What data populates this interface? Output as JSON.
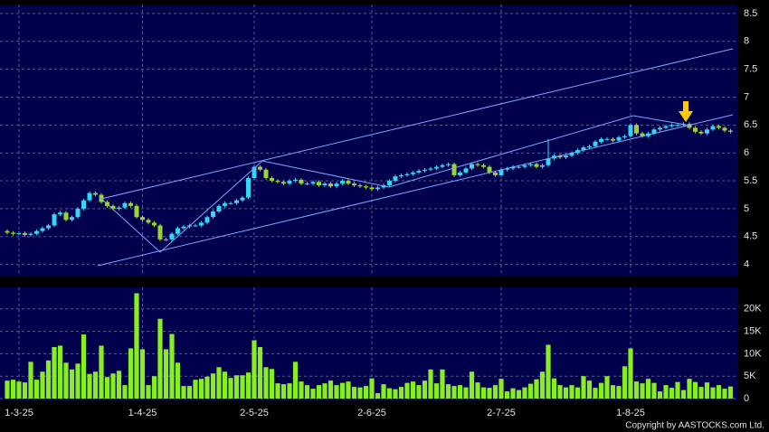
{
  "chart_data": [
    {
      "type": "candlestick",
      "categories": [
        null,
        null,
        "1-3-25",
        null,
        null,
        null,
        null,
        null,
        null,
        null,
        null,
        null,
        null,
        null,
        null,
        null,
        null,
        null,
        null,
        null,
        null,
        null,
        null,
        "1-4-25",
        null,
        null,
        null,
        null,
        null,
        null,
        null,
        null,
        null,
        null,
        null,
        null,
        null,
        null,
        null,
        null,
        null,
        null,
        "2-5-25",
        null,
        null,
        null,
        null,
        null,
        null,
        null,
        null,
        null,
        null,
        null,
        null,
        null,
        null,
        null,
        null,
        null,
        null,
        null,
        "2-6-25",
        null,
        null,
        null,
        null,
        null,
        null,
        null,
        null,
        null,
        null,
        null,
        null,
        null,
        null,
        null,
        null,
        null,
        null,
        null,
        null,
        null,
        "2-7-25",
        null,
        null,
        null,
        null,
        null,
        null,
        null,
        null,
        null,
        null,
        null,
        null,
        null,
        null,
        null,
        null,
        null,
        null,
        null,
        null,
        null,
        "1-8-25",
        null,
        null,
        null,
        null,
        null,
        null,
        null,
        null,
        null,
        null,
        null,
        null,
        null,
        null,
        null,
        null,
        null
      ],
      "open": [
        4.6,
        4.57,
        4.55,
        4.56,
        4.53,
        4.55,
        4.6,
        4.65,
        4.7,
        4.9,
        4.93,
        4.8,
        4.85,
        5.0,
        5.15,
        5.28,
        5.25,
        5.12,
        5.05,
        5.0,
        5.02,
        5.1,
        5.05,
        4.85,
        4.8,
        4.75,
        4.7,
        4.45,
        4.45,
        4.55,
        4.65,
        4.68,
        4.7,
        4.7,
        4.75,
        4.85,
        4.95,
        5.05,
        5.1,
        5.1,
        5.15,
        5.2,
        5.55,
        5.75,
        5.7,
        5.55,
        5.5,
        5.48,
        5.45,
        5.5,
        5.52,
        5.45,
        5.45,
        5.48,
        5.42,
        5.45,
        5.4,
        5.45,
        5.5,
        5.45,
        5.42,
        5.4,
        5.38,
        5.35,
        5.38,
        5.42,
        5.5,
        5.58,
        5.6,
        5.62,
        5.65,
        5.68,
        5.7,
        5.72,
        5.75,
        5.78,
        5.8,
        5.6,
        5.65,
        5.72,
        5.8,
        5.78,
        5.75,
        5.65,
        5.6,
        5.7,
        5.72,
        5.75,
        5.75,
        5.78,
        5.8,
        5.75,
        5.78,
        5.9,
        5.95,
        5.92,
        5.95,
        6.0,
        6.05,
        6.1,
        6.12,
        6.2,
        6.25,
        6.25,
        6.22,
        6.28,
        6.3,
        6.5,
        6.35,
        6.3,
        6.35,
        6.42,
        6.45,
        6.48,
        6.5,
        6.5,
        6.52,
        6.45,
        6.38,
        6.35,
        6.42,
        6.48,
        6.45,
        6.4
      ],
      "high": [
        4.63,
        4.6,
        4.59,
        4.59,
        4.58,
        4.63,
        4.68,
        4.73,
        4.93,
        4.96,
        4.96,
        4.88,
        5.03,
        5.18,
        5.31,
        5.31,
        5.28,
        5.15,
        5.08,
        5.05,
        5.13,
        5.13,
        5.08,
        4.88,
        4.83,
        4.78,
        4.73,
        4.48,
        4.58,
        4.68,
        4.71,
        4.73,
        4.73,
        4.78,
        4.88,
        4.98,
        5.08,
        5.13,
        5.13,
        5.18,
        5.23,
        5.58,
        5.78,
        5.78,
        5.73,
        5.58,
        5.53,
        5.51,
        5.53,
        5.55,
        5.55,
        5.48,
        5.51,
        5.51,
        5.48,
        5.48,
        5.48,
        5.53,
        5.53,
        5.48,
        5.45,
        5.43,
        5.41,
        5.41,
        5.45,
        5.53,
        5.61,
        5.63,
        5.65,
        5.68,
        5.71,
        5.73,
        5.75,
        5.78,
        5.81,
        5.83,
        5.83,
        5.68,
        5.75,
        5.83,
        5.83,
        5.81,
        5.78,
        5.68,
        5.73,
        5.75,
        5.78,
        5.78,
        5.81,
        5.83,
        5.83,
        5.81,
        6.25,
        5.98,
        5.98,
        5.98,
        6.03,
        6.08,
        6.13,
        6.15,
        6.23,
        6.28,
        6.28,
        6.28,
        6.31,
        6.33,
        6.53,
        6.53,
        6.38,
        6.38,
        6.45,
        6.48,
        6.51,
        6.53,
        6.53,
        6.55,
        6.55,
        6.48,
        6.41,
        6.45,
        6.51,
        6.51,
        6.48,
        6.43
      ],
      "low": [
        4.54,
        4.52,
        4.52,
        4.5,
        4.5,
        4.52,
        4.57,
        4.62,
        4.67,
        4.87,
        4.77,
        4.77,
        4.82,
        4.97,
        5.12,
        5.22,
        5.09,
        5.02,
        4.97,
        4.97,
        4.99,
        5.02,
        4.82,
        4.77,
        4.72,
        4.67,
        4.42,
        4.42,
        4.42,
        4.52,
        4.62,
        4.65,
        4.67,
        4.67,
        4.72,
        4.82,
        4.92,
        5.02,
        5.07,
        5.07,
        5.12,
        5.17,
        5.52,
        5.67,
        5.52,
        5.47,
        5.45,
        5.42,
        5.42,
        5.47,
        5.42,
        5.42,
        5.42,
        5.39,
        5.39,
        5.37,
        5.37,
        5.42,
        5.42,
        5.39,
        5.37,
        5.35,
        5.32,
        5.32,
        5.35,
        5.39,
        5.47,
        5.55,
        5.57,
        5.59,
        5.62,
        5.65,
        5.67,
        5.69,
        5.72,
        5.75,
        5.57,
        5.57,
        5.62,
        5.69,
        5.75,
        5.72,
        5.62,
        5.57,
        5.57,
        5.67,
        5.69,
        5.72,
        5.72,
        5.75,
        5.72,
        5.72,
        5.75,
        5.87,
        5.89,
        5.89,
        5.92,
        5.97,
        6.02,
        6.07,
        6.09,
        6.17,
        6.22,
        6.19,
        6.19,
        6.25,
        6.27,
        6.32,
        6.27,
        6.27,
        6.32,
        6.39,
        6.42,
        6.45,
        6.47,
        6.47,
        6.42,
        6.35,
        6.32,
        6.32,
        6.39,
        6.42,
        6.37,
        6.35
      ],
      "close": [
        4.57,
        4.55,
        4.56,
        4.53,
        4.55,
        4.6,
        4.65,
        4.7,
        4.9,
        4.93,
        4.8,
        4.85,
        5.0,
        5.15,
        5.28,
        5.25,
        5.12,
        5.05,
        5.0,
        5.02,
        5.1,
        5.05,
        4.85,
        4.8,
        4.75,
        4.7,
        4.45,
        4.45,
        4.55,
        4.65,
        4.68,
        4.7,
        4.7,
        4.75,
        4.85,
        4.95,
        5.05,
        5.1,
        5.1,
        5.15,
        5.2,
        5.55,
        5.75,
        5.7,
        5.55,
        5.5,
        5.48,
        5.45,
        5.5,
        5.52,
        5.45,
        5.45,
        5.48,
        5.42,
        5.45,
        5.4,
        5.45,
        5.5,
        5.45,
        5.42,
        5.4,
        5.38,
        5.35,
        5.38,
        5.42,
        5.5,
        5.58,
        5.6,
        5.62,
        5.65,
        5.68,
        5.7,
        5.72,
        5.75,
        5.78,
        5.8,
        5.6,
        5.65,
        5.72,
        5.8,
        5.78,
        5.75,
        5.65,
        5.6,
        5.7,
        5.72,
        5.75,
        5.75,
        5.78,
        5.8,
        5.75,
        5.78,
        5.9,
        5.95,
        5.92,
        5.95,
        6.0,
        6.05,
        6.1,
        6.12,
        6.2,
        6.25,
        6.25,
        6.22,
        6.28,
        6.3,
        6.5,
        6.35,
        6.3,
        6.35,
        6.42,
        6.45,
        6.48,
        6.5,
        6.5,
        6.52,
        6.45,
        6.38,
        6.35,
        6.42,
        6.48,
        6.45,
        6.4,
        6.38
      ],
      "up_color": "#33d6f5",
      "down_color": "#99d633",
      "ylim": [
        3.8,
        8.66
      ],
      "yticks": [
        4,
        4.5,
        5,
        5.5,
        6,
        6.5,
        7,
        7.5,
        8,
        8.5
      ],
      "grid": true
    },
    {
      "type": "bar",
      "values": [
        4000,
        4200,
        3800,
        3600,
        8200,
        4200,
        6000,
        8500,
        11500,
        11800,
        8000,
        6500,
        7800,
        14300,
        5500,
        6000,
        11800,
        4800,
        5600,
        6200,
        3000,
        11200,
        23500,
        11000,
        3000,
        5000,
        17800,
        11000,
        14400,
        8000,
        2800,
        2800,
        4200,
        4400,
        4900,
        5600,
        7000,
        6000,
        4600,
        5200,
        5200,
        5800,
        13000,
        11500,
        7000,
        6600,
        3400,
        3200,
        3400,
        8200,
        3800,
        3000,
        2200,
        3000,
        3400,
        4000,
        3000,
        3500,
        3800,
        2600,
        2500,
        2800,
        4500,
        1200,
        3200,
        2300,
        2100,
        2600,
        3500,
        3800,
        3000,
        4000,
        6500,
        3400,
        6500,
        3200,
        2800,
        3000,
        2500,
        6000,
        3600,
        2500,
        2400,
        3000,
        4400,
        1600,
        2300,
        1900,
        2500,
        3300,
        4300,
        6000,
        12000,
        4500,
        3000,
        2500,
        3000,
        2500,
        5000,
        4000,
        2400,
        3500,
        5000,
        3000,
        2800,
        7200,
        11200,
        3800,
        3400,
        4400,
        3500,
        1600,
        3000,
        2400,
        3700,
        1900,
        4400,
        3700,
        2600,
        3600,
        2500,
        3000,
        2200,
        2700
      ],
      "color": "#88ee22",
      "ylim": [
        0,
        24800
      ],
      "yticks": [
        0,
        {
          "value": 5000,
          "label": "5K"
        },
        {
          "value": 10000,
          "label": "10K"
        },
        {
          "value": 15000,
          "label": "15K"
        },
        {
          "value": 20000,
          "label": "20K"
        }
      ],
      "grid": true
    }
  ],
  "footer": "Copyright by AASTOCKS.com Ltd."
}
